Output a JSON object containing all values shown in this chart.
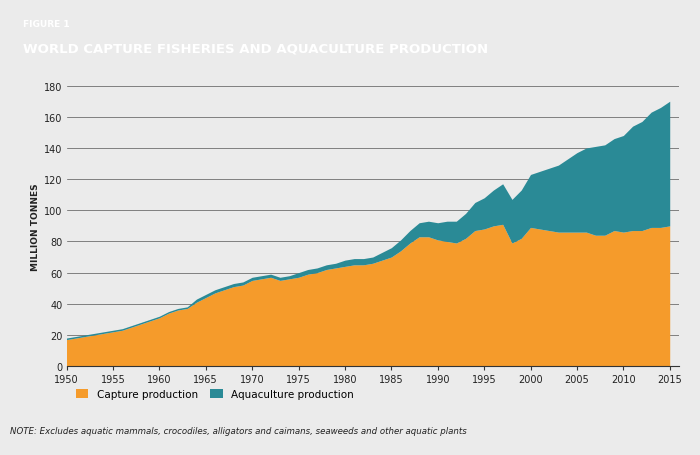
{
  "title_line1": "FIGURE 1",
  "title_line2": "WORLD CAPTURE FISHERIES AND AQUACULTURE PRODUCTION",
  "title_bg_color": "#7f7f7f",
  "title_text_color": "#ffffff",
  "bg_color": "#ebebeb",
  "plot_bg_color": "#ebebeb",
  "ylabel": "MILLION TONNES",
  "note": "NOTE: Excludes aquatic mammals, crocodiles, alligators and caimans, seaweeds and other aquatic plants",
  "legend_capture": "Capture production",
  "legend_aqua": "Aquaculture production",
  "capture_color": "#f59b2b",
  "aqua_color": "#2a8a96",
  "years": [
    1950,
    1951,
    1952,
    1953,
    1954,
    1955,
    1956,
    1957,
    1958,
    1959,
    1960,
    1961,
    1962,
    1963,
    1964,
    1965,
    1966,
    1967,
    1968,
    1969,
    1970,
    1971,
    1972,
    1973,
    1974,
    1975,
    1976,
    1977,
    1978,
    1979,
    1980,
    1981,
    1982,
    1983,
    1984,
    1985,
    1986,
    1987,
    1988,
    1989,
    1990,
    1991,
    1992,
    1993,
    1994,
    1995,
    1996,
    1997,
    1998,
    1999,
    2000,
    2001,
    2002,
    2003,
    2004,
    2005,
    2006,
    2007,
    2008,
    2009,
    2010,
    2011,
    2012,
    2013,
    2014,
    2015
  ],
  "capture": [
    17,
    18,
    19,
    20,
    21,
    22,
    23,
    25,
    27,
    29,
    31,
    34,
    36,
    37,
    41,
    44,
    47,
    49,
    51,
    52,
    55,
    56,
    57,
    55,
    56,
    57,
    59,
    60,
    62,
    63,
    64,
    65,
    65,
    66,
    68,
    70,
    74,
    79,
    83,
    83,
    81,
    80,
    79,
    82,
    87,
    88,
    90,
    91,
    79,
    82,
    89,
    88,
    87,
    86,
    86,
    86,
    86,
    84,
    84,
    87,
    86,
    87,
    87,
    89,
    89,
    90
  ],
  "aquaculture": [
    1,
    1,
    1,
    1,
    1,
    1,
    1,
    1,
    1,
    1,
    1,
    1,
    1,
    1,
    2,
    2,
    2,
    2,
    2,
    2,
    2,
    2,
    2,
    2,
    2,
    3,
    3,
    3,
    3,
    3,
    4,
    4,
    4,
    4,
    5,
    6,
    7,
    8,
    9,
    10,
    11,
    13,
    14,
    16,
    18,
    20,
    23,
    26,
    28,
    31,
    34,
    37,
    40,
    43,
    47,
    51,
    54,
    57,
    58,
    59,
    62,
    67,
    70,
    74,
    77,
    80
  ]
}
